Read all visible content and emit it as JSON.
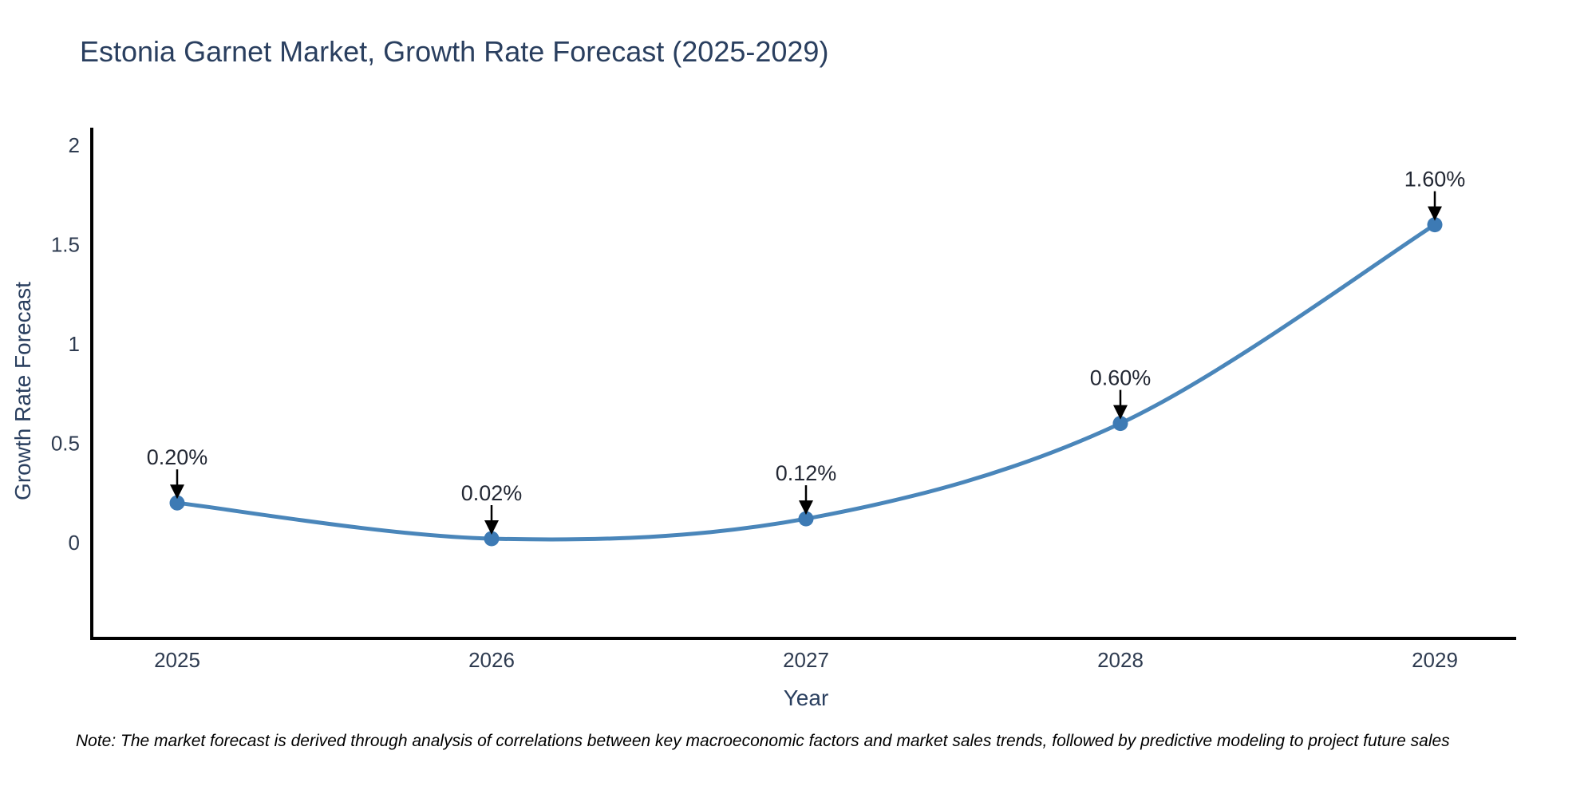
{
  "title": "Estonia Garnet Market, Growth Rate Forecast (2025-2029)",
  "note": "Note: The market forecast is derived through analysis of correlations between key macroeconomic factors and market sales trends, followed by predictive modeling to project future sales",
  "chart_data": {
    "type": "line",
    "line_shape": "spline",
    "x": [
      2025,
      2026,
      2027,
      2028,
      2029
    ],
    "series": [
      {
        "name": "Growth Rate Forecast",
        "values": [
          0.2,
          0.02,
          0.12,
          0.6,
          1.6
        ]
      }
    ],
    "point_labels": [
      "0.20%",
      "0.02%",
      "0.12%",
      "0.60%",
      "1.60%"
    ],
    "title": "Estonia Garnet Market, Growth Rate Forecast (2025-2029)",
    "xlabel": "Year",
    "ylabel": "Growth Rate Forecast",
    "yticks": [
      0,
      0.5,
      1,
      1.5,
      2
    ],
    "ylim": [
      -0.48,
      2.1
    ],
    "grid": false,
    "legend": "none",
    "background": "#ffffff",
    "colors": {
      "line": "#4a86ba",
      "marker": "#3d7ab4",
      "axis": "#000000",
      "axis_text": "#2e3b50",
      "title_text": "#2a3f5f",
      "annotation_text": "#222733",
      "arrow": "#000000"
    }
  }
}
